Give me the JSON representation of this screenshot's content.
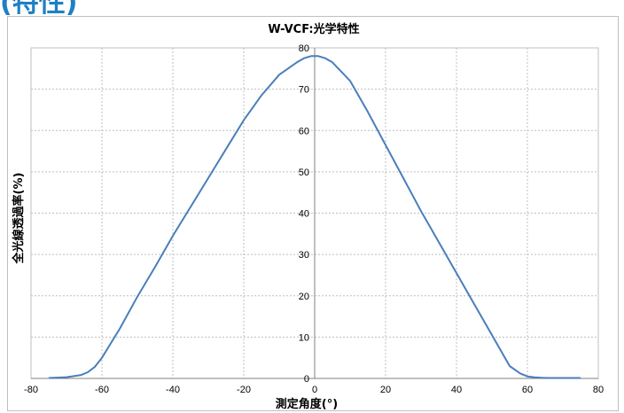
{
  "page": {
    "heading_fragment": "(特性)"
  },
  "chart_data": {
    "type": "line",
    "title": "W-VCF:光学特性",
    "xlabel": "測定角度(°)",
    "ylabel": "全光線透過率(%)",
    "xlim": [
      -80,
      80
    ],
    "ylim": [
      0,
      80
    ],
    "x_ticks": [
      "-80",
      "-60",
      "-40",
      "-20",
      "0",
      "20",
      "40",
      "60",
      "80"
    ],
    "y_ticks": [
      "0",
      "10",
      "20",
      "30",
      "40",
      "50",
      "60",
      "70",
      "80"
    ],
    "grid": true,
    "legend": "none",
    "line_color": "#4a7ebb",
    "series": [
      {
        "x": [
          -75,
          -70,
          -66,
          -64,
          -62,
          -60,
          -58,
          -55,
          -50,
          -45,
          -40,
          -35,
          -30,
          -25,
          -20,
          -15,
          -10,
          -5,
          -3,
          -1,
          0,
          1,
          3,
          5,
          10,
          15,
          20,
          25,
          30,
          35,
          40,
          45,
          50,
          55,
          58,
          60,
          62,
          64,
          66,
          70,
          75
        ],
        "y": [
          0.1,
          0.3,
          0.8,
          1.5,
          2.8,
          5,
          7.8,
          12,
          19.8,
          27,
          34.5,
          41.5,
          48.5,
          55.5,
          62.5,
          68.5,
          73.5,
          76.5,
          77.5,
          78,
          78,
          78,
          77.5,
          76.5,
          72,
          64.5,
          56.5,
          48.5,
          40.5,
          33,
          25.5,
          18,
          10.5,
          3,
          1.2,
          0.5,
          0.25,
          0.15,
          0.1,
          0.1,
          0.1
        ]
      }
    ]
  }
}
